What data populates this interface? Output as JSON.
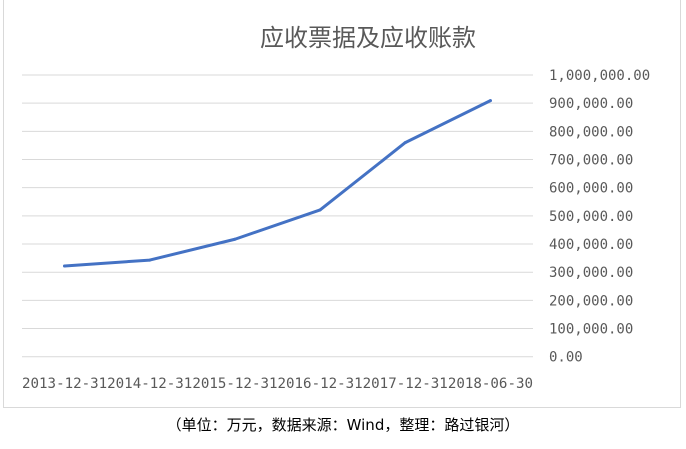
{
  "chart_data": {
    "type": "line",
    "title": "应收票据及应收账款",
    "categories": [
      "2013-12-31",
      "2014-12-31",
      "2015-12-31",
      "2016-12-31",
      "2017-12-31",
      "2018-06-30"
    ],
    "series": [
      {
        "values": [
          322000,
          343000,
          417000,
          521000,
          760000,
          909000
        ],
        "color": "#4472c4"
      }
    ],
    "ylim": [
      0,
      1000000
    ],
    "yticks": [
      "0.00",
      "100,000.00",
      "200,000.00",
      "300,000.00",
      "400,000.00",
      "500,000.00",
      "600,000.00",
      "700,000.00",
      "800,000.00",
      "900,000.00",
      "1,000,000.00"
    ],
    "yaxis_position": "right",
    "grid": true,
    "legend": "none"
  },
  "caption": "（单位：万元，数据来源：Wind，整理：路过银河）"
}
